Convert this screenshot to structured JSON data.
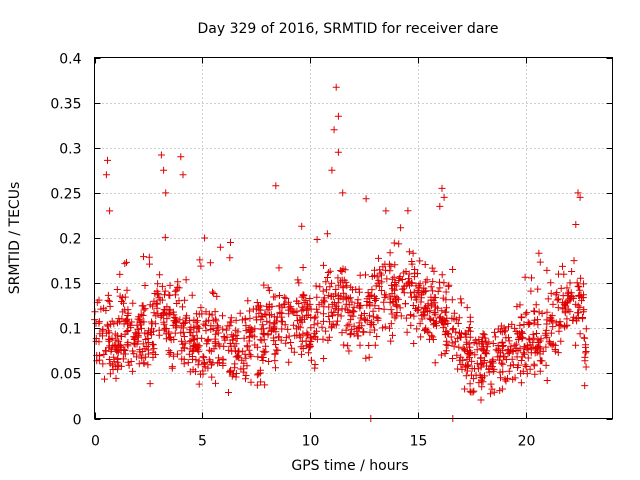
{
  "chart_data": {
    "type": "scatter",
    "title": "Day 329 of 2016, SRMTID for receiver dare",
    "xlabel": "GPS time / hours",
    "ylabel": "SRMTID / TECUs",
    "xlim": [
      0,
      24
    ],
    "ylim": [
      0,
      0.4
    ],
    "x_ticks": [
      0,
      5,
      10,
      15,
      20
    ],
    "x_tick_labels": [
      "0",
      "5",
      "10",
      "15",
      "20"
    ],
    "y_ticks": [
      0,
      0.05,
      0.1,
      0.15,
      0.2,
      0.25,
      0.3,
      0.35,
      0.4
    ],
    "y_tick_labels": [
      "0",
      "0.05",
      "0.1",
      "0.15",
      "0.2",
      "0.25",
      "0.3",
      "0.35",
      "0.4"
    ],
    "grid": true,
    "marker": "plus",
    "series": [
      {
        "name": "SRMTID",
        "color": "#e00000",
        "sampled_trend": {
          "x": [
            0.0,
            0.5,
            1.0,
            1.5,
            2.0,
            2.5,
            3.0,
            3.5,
            4.0,
            4.5,
            5.0,
            5.5,
            6.0,
            6.5,
            7.0,
            7.5,
            8.0,
            8.5,
            9.0,
            9.5,
            10.0,
            10.5,
            11.0,
            11.5,
            12.0,
            12.5,
            13.0,
            13.5,
            14.0,
            14.5,
            15.0,
            15.5,
            16.0,
            16.5,
            17.0,
            17.5,
            18.0,
            18.5,
            19.0,
            19.5,
            20.0,
            20.5,
            21.0,
            21.5,
            22.0,
            22.5,
            22.8
          ],
          "y": [
            0.09,
            0.1,
            0.08,
            0.1,
            0.09,
            0.08,
            0.12,
            0.11,
            0.1,
            0.09,
            0.08,
            0.09,
            0.09,
            0.08,
            0.08,
            0.09,
            0.1,
            0.1,
            0.11,
            0.12,
            0.1,
            0.12,
            0.13,
            0.13,
            0.12,
            0.12,
            0.13,
            0.14,
            0.14,
            0.14,
            0.13,
            0.12,
            0.12,
            0.1,
            0.08,
            0.07,
            0.06,
            0.06,
            0.07,
            0.08,
            0.08,
            0.09,
            0.1,
            0.11,
            0.12,
            0.12,
            0.08
          ]
        },
        "spikes": [
          {
            "x": 0.6,
            "y": 0.286
          },
          {
            "x": 0.55,
            "y": 0.27
          },
          {
            "x": 0.7,
            "y": 0.23
          },
          {
            "x": 3.1,
            "y": 0.292
          },
          {
            "x": 3.2,
            "y": 0.275
          },
          {
            "x": 3.3,
            "y": 0.25
          },
          {
            "x": 4.0,
            "y": 0.29
          },
          {
            "x": 4.1,
            "y": 0.27
          },
          {
            "x": 5.1,
            "y": 0.2
          },
          {
            "x": 6.3,
            "y": 0.195
          },
          {
            "x": 8.4,
            "y": 0.258
          },
          {
            "x": 9.6,
            "y": 0.213
          },
          {
            "x": 11.2,
            "y": 0.367
          },
          {
            "x": 11.3,
            "y": 0.335
          },
          {
            "x": 11.1,
            "y": 0.32
          },
          {
            "x": 11.3,
            "y": 0.295
          },
          {
            "x": 11.0,
            "y": 0.275
          },
          {
            "x": 11.5,
            "y": 0.25
          },
          {
            "x": 13.5,
            "y": 0.23
          },
          {
            "x": 16.1,
            "y": 0.255
          },
          {
            "x": 16.2,
            "y": 0.245
          },
          {
            "x": 16.0,
            "y": 0.235
          },
          {
            "x": 22.4,
            "y": 0.25
          },
          {
            "x": 22.5,
            "y": 0.245
          },
          {
            "x": 22.3,
            "y": 0.215
          },
          {
            "x": 21.5,
            "y": 0.16
          },
          {
            "x": 12.8,
            "y": 0.0
          },
          {
            "x": 16.6,
            "y": 0.0
          }
        ]
      }
    ]
  }
}
